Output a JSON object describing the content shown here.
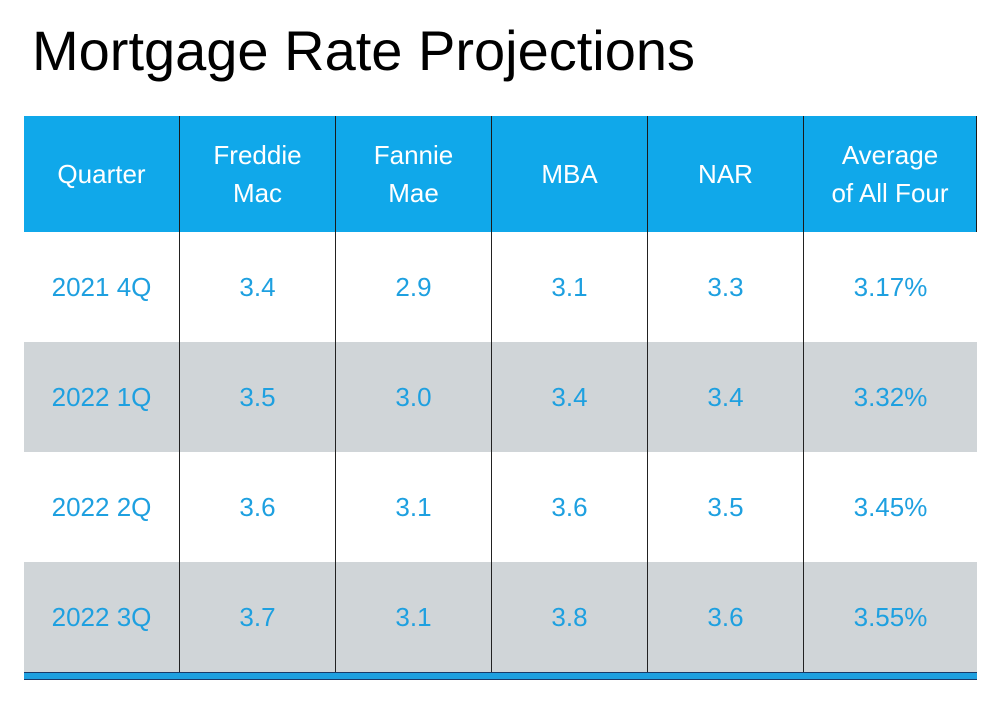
{
  "title": "Mortgage Rate Projections",
  "colors": {
    "header_bg": "#10a8ea",
    "header_text": "#ffffff",
    "body_text": "#1ea0e0",
    "alt_row_bg": "#d0d5d8",
    "bottom_bar": "#1ea0e0"
  },
  "chart_data": {
    "type": "table",
    "title": "Mortgage Rate Projections",
    "columns": [
      "Quarter",
      "Freddie\nMac",
      "Fannie\nMae",
      "MBA",
      "NAR",
      "Average\nof All Four"
    ],
    "rows": [
      [
        "2021 4Q",
        "3.4",
        "2.9",
        "3.1",
        "3.3",
        "3.17%"
      ],
      [
        "2022 1Q",
        "3.5",
        "3.0",
        "3.4",
        "3.4",
        "3.32%"
      ],
      [
        "2022 2Q",
        "3.6",
        "3.1",
        "3.6",
        "3.5",
        "3.45%"
      ],
      [
        "2022 3Q",
        "3.7",
        "3.1",
        "3.8",
        "3.6",
        "3.55%"
      ]
    ]
  }
}
